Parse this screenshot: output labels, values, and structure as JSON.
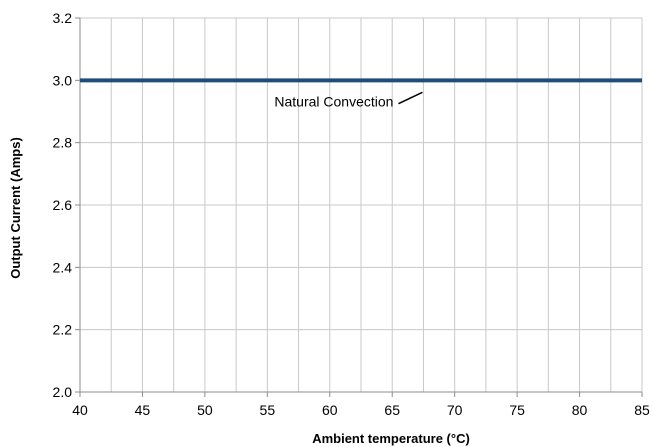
{
  "chart_data": {
    "type": "line",
    "xlabel": "Ambient temperature (°C)",
    "ylabel": "Output Current (Amps)",
    "xlim": [
      40,
      85
    ],
    "ylim": [
      2.0,
      3.2
    ],
    "x_ticks": [
      "40",
      "45",
      "50",
      "55",
      "60",
      "65",
      "70",
      "75",
      "80",
      "85"
    ],
    "y_ticks": [
      "2.0",
      "2.2",
      "2.4",
      "2.6",
      "2.8",
      "3.0",
      "3.2"
    ],
    "grid": true,
    "series": [
      {
        "name": "Natural Convection",
        "x": [
          40,
          85
        ],
        "y": [
          3.0,
          3.0
        ],
        "color": "#1f4e79"
      }
    ],
    "annotations": [
      {
        "text": "Natural Convection",
        "x": 67.5,
        "y": 2.97
      }
    ]
  }
}
